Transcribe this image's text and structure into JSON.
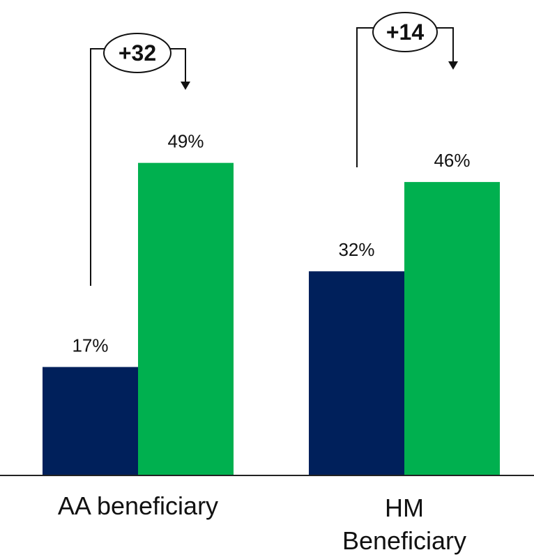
{
  "chart_data": {
    "type": "bar",
    "categories": [
      [
        "AA beneficiary"
      ],
      [
        "HM",
        "Beneficiary"
      ]
    ],
    "series": [
      {
        "values": [
          17,
          32
        ],
        "color": "#00205b"
      },
      {
        "values": [
          49,
          46
        ],
        "color": "#00b04f"
      }
    ],
    "value_labels": [
      [
        "17%",
        "32%"
      ],
      [
        "49%",
        "46%"
      ]
    ],
    "differences": [
      "+32",
      "+14"
    ],
    "ylim": [
      0,
      60
    ],
    "grid": false,
    "legend": "none"
  }
}
